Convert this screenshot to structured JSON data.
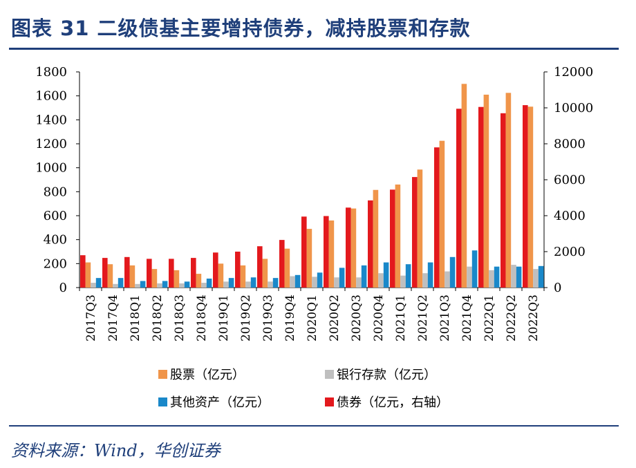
{
  "title": "图表 31  二级债基主要增持债券，减持股票和存款",
  "source": "资料来源：Wind，华创证券",
  "chart_data": {
    "type": "bar",
    "categories": [
      "2017Q3",
      "2017Q4",
      "2018Q1",
      "2018Q2",
      "2018Q3",
      "2018Q4",
      "2019Q1",
      "2019Q2",
      "2019Q3",
      "2019Q4",
      "2020Q1",
      "2020Q2",
      "2020Q3",
      "2020Q4",
      "2021Q1",
      "2021Q2",
      "2021Q3",
      "2021Q4",
      "2022Q1",
      "2022Q2",
      "2022Q3"
    ],
    "left_axis": {
      "ylim": [
        0,
        1800
      ],
      "ticks": [
        0,
        200,
        400,
        600,
        800,
        1000,
        1200,
        1400,
        1600,
        1800
      ]
    },
    "right_axis": {
      "ylim": [
        0,
        12000
      ],
      "ticks": [
        0,
        2000,
        4000,
        6000,
        8000,
        10000,
        12000
      ]
    },
    "series": [
      {
        "name": "股票（亿元）",
        "axis": "left",
        "color": "#f0954a",
        "values": [
          210,
          195,
          185,
          155,
          145,
          115,
          200,
          185,
          240,
          325,
          490,
          560,
          660,
          815,
          860,
          985,
          1225,
          1700,
          1610,
          1625,
          1510
        ]
      },
      {
        "name": "银行存款（亿元）",
        "axis": "left",
        "color": "#bfbfbf",
        "values": [
          40,
          30,
          30,
          35,
          35,
          40,
          50,
          50,
          50,
          95,
          90,
          85,
          85,
          120,
          100,
          120,
          135,
          175,
          145,
          190,
          155
        ]
      },
      {
        "name": "其他资产（亿元）",
        "axis": "left",
        "color": "#1a88c9",
        "values": [
          80,
          80,
          55,
          55,
          50,
          75,
          80,
          85,
          80,
          105,
          125,
          165,
          185,
          210,
          195,
          210,
          255,
          310,
          175,
          175,
          180
        ]
      },
      {
        "name": "债券（亿元，右轴）",
        "axis": "right",
        "color": "#e3191d",
        "values": [
          1800,
          1650,
          1700,
          1600,
          1600,
          1650,
          1950,
          2000,
          2300,
          2650,
          3950,
          3980,
          4450,
          4850,
          5450,
          6150,
          7800,
          9950,
          10050,
          9700,
          10150
        ]
      }
    ]
  }
}
